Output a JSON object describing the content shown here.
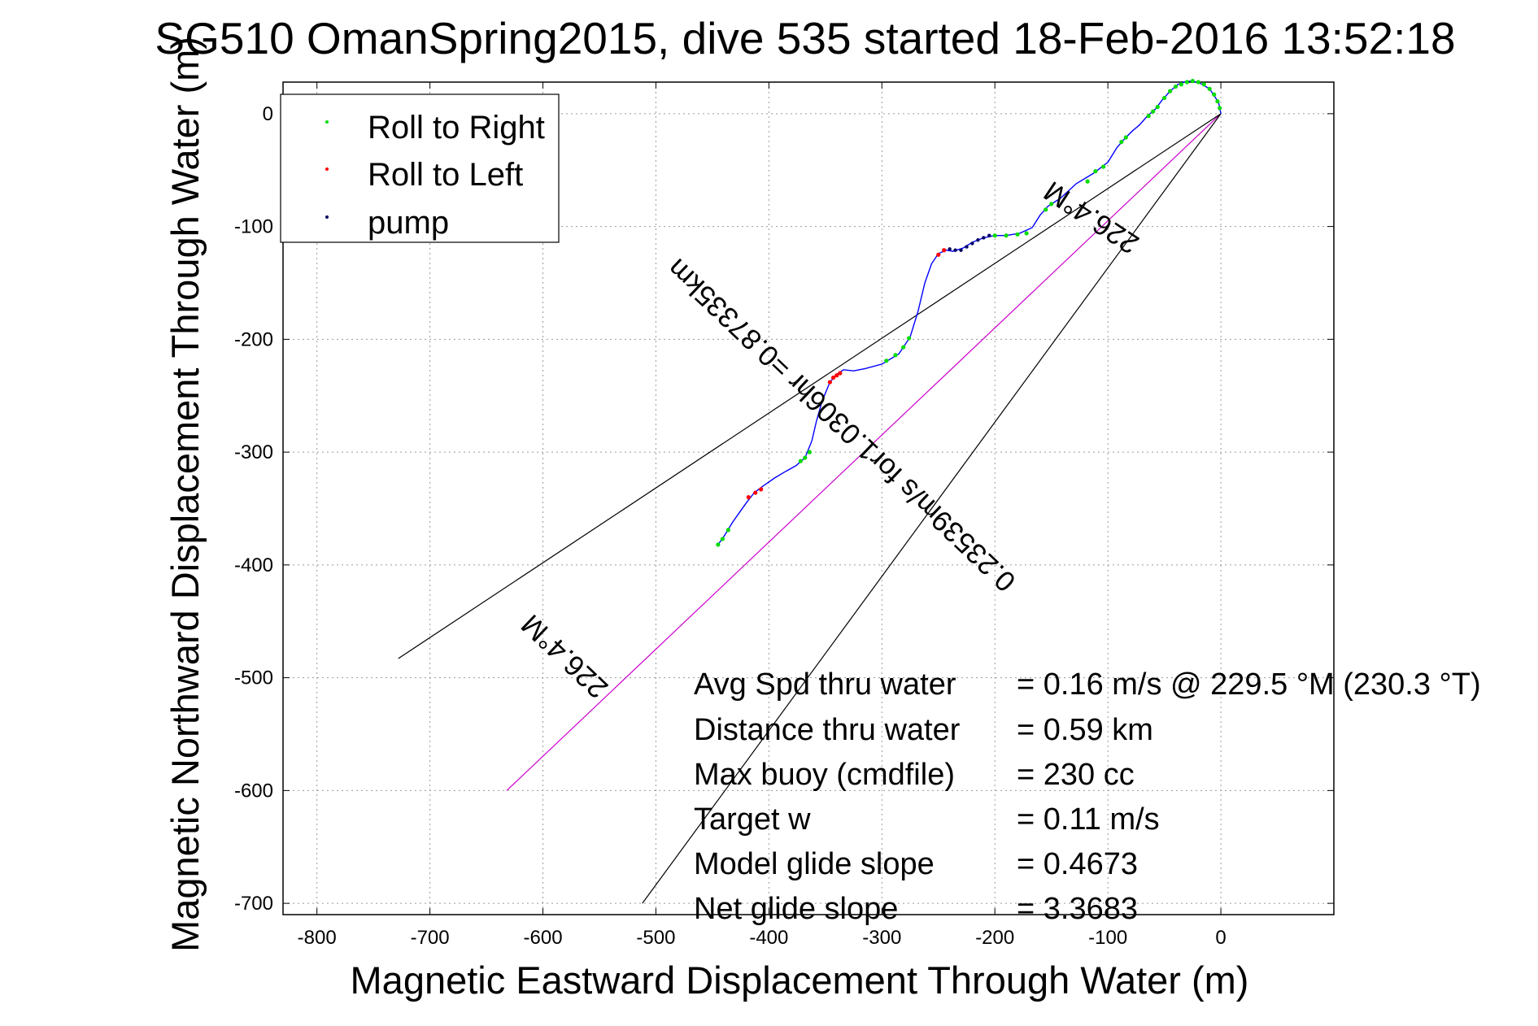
{
  "chart_data": {
    "type": "line",
    "title": "SG510 OmanSpring2015, dive 535 started 18-Feb-2016 13:52:18",
    "xlabel": "Magnetic Eastward Displacement Through Water (m)",
    "ylabel": "Magnetic Northward Displacement Through Water (m)",
    "xlim": [
      -830,
      100
    ],
    "ylim": [
      -710,
      28
    ],
    "xticks": [
      "-800",
      "-700",
      "-600",
      "-500",
      "-400",
      "-300",
      "-200",
      "-100",
      "0"
    ],
    "yticks": [
      "0",
      "-100",
      "-200",
      "-300",
      "-400",
      "-500",
      "-600",
      "-700"
    ],
    "grid": true,
    "legend_position": "top-left",
    "legend": [
      {
        "label": "Roll to Right",
        "color": "#00dd00"
      },
      {
        "label": "Roll to Left",
        "color": "#ff0000"
      },
      {
        "label": "pump",
        "color": "#000066"
      }
    ],
    "series": [
      {
        "name": "track",
        "color": "#0000ff",
        "x": [
          -445,
          -440,
          -432,
          -425,
          -420,
          -413,
          -405,
          -395,
          -385,
          -376,
          -368,
          -362,
          -358,
          -353,
          -346,
          -340,
          -334,
          -325,
          -315,
          -300,
          -285,
          -275,
          -268,
          -262,
          -256,
          -250,
          -243,
          -237,
          -228,
          -220,
          -210,
          -200,
          -190,
          -178,
          -167,
          -160,
          -153,
          -142,
          -128,
          -113,
          -100,
          -92,
          -85,
          -78,
          -72,
          -65,
          -58,
          -52,
          -45,
          -38,
          -30,
          -20,
          -10,
          -2,
          0
        ],
        "y": [
          -382,
          -375,
          -362,
          -352,
          -345,
          -336,
          -330,
          -323,
          -317,
          -312,
          -305,
          -290,
          -273,
          -255,
          -238,
          -231,
          -227,
          -228,
          -226,
          -222,
          -213,
          -198,
          -175,
          -150,
          -133,
          -124,
          -121,
          -122,
          -119,
          -114,
          -110,
          -108,
          -108,
          -106,
          -101,
          -90,
          -82,
          -75,
          -62,
          -53,
          -43,
          -30,
          -22,
          -15,
          -10,
          -2,
          4,
          12,
          20,
          26,
          29,
          28,
          22,
          10,
          0
        ]
      }
    ],
    "markers": {
      "roll_right": [
        [
          -445,
          -382
        ],
        [
          -441,
          -377
        ],
        [
          -436,
          -369
        ],
        [
          -372,
          -308
        ],
        [
          -368,
          -305
        ],
        [
          -364,
          -300
        ],
        [
          -296,
          -219
        ],
        [
          -288,
          -214
        ],
        [
          -281,
          -207
        ],
        [
          -276,
          -199
        ],
        [
          -200,
          -108
        ],
        [
          -190,
          -108
        ],
        [
          -180,
          -107
        ],
        [
          -172,
          -106
        ],
        [
          -155,
          -85
        ],
        [
          -150,
          -80
        ],
        [
          -118,
          -60
        ],
        [
          -111,
          -51
        ],
        [
          -104,
          -47
        ],
        [
          -88,
          -25
        ],
        [
          -84,
          -21
        ],
        [
          -64,
          -2
        ],
        [
          -60,
          2
        ],
        [
          -56,
          6
        ],
        [
          -50,
          14
        ],
        [
          -45,
          20
        ],
        [
          -40,
          24
        ],
        [
          -35,
          26
        ],
        [
          -30,
          28
        ],
        [
          -25,
          29
        ],
        [
          -20,
          28
        ],
        [
          -15,
          26
        ],
        [
          -10,
          22
        ],
        [
          -6,
          17
        ],
        [
          -3,
          11
        ],
        [
          -1,
          5
        ]
      ],
      "roll_left": [
        [
          -418,
          -340
        ],
        [
          -412,
          -336
        ],
        [
          -407,
          -333
        ],
        [
          -346,
          -238
        ],
        [
          -343,
          -234
        ],
        [
          -340,
          -232
        ],
        [
          -337,
          -230
        ],
        [
          -250,
          -125
        ],
        [
          -245,
          -121
        ]
      ],
      "pump": [
        [
          -240,
          -120
        ],
        [
          -235,
          -121
        ],
        [
          -230,
          -121
        ],
        [
          -225,
          -118
        ],
        [
          -220,
          -115
        ],
        [
          -215,
          -112
        ],
        [
          -210,
          -110
        ],
        [
          -205,
          -108
        ]
      ]
    },
    "reference_lines": [
      {
        "name": "heading-line",
        "color": "#cc00cc",
        "x": [
          0,
          -632
        ],
        "y": [
          0,
          -600
        ]
      },
      {
        "name": "envelope-upper",
        "color": "#000000",
        "x": [
          0,
          -728
        ],
        "y": [
          0,
          -483
        ]
      },
      {
        "name": "envelope-lower",
        "color": "#000000",
        "x": [
          0,
          -512
        ],
        "y": [
          0,
          -700
        ]
      }
    ],
    "annotations": [
      {
        "text": "0.23539m/s for1.0306hr =0.87335km",
        "x": -330,
        "y": -270,
        "rotate": 223.6
      },
      {
        "text": "226.4°M",
        "x": -110,
        "y": -85,
        "rotate": 213.6
      },
      {
        "text": "226.4°M",
        "x": -575,
        "y": -475,
        "rotate": 223.6
      }
    ],
    "stats": [
      {
        "label": "Avg Spd thru water",
        "value": "=  0.16 m/s @ 229.5 °M (230.3 °T)"
      },
      {
        "label": "Distance thru water",
        "value": "=  0.59 km"
      },
      {
        "label": "Max buoy (cmdfile)",
        "value": "= 230 cc"
      },
      {
        "label": "Target w",
        "value": "= 0.11 m/s"
      },
      {
        "label": "Model glide slope",
        "value": "= 0.4673"
      },
      {
        "label": "Net glide slope",
        "value": "= 3.3683"
      }
    ]
  }
}
